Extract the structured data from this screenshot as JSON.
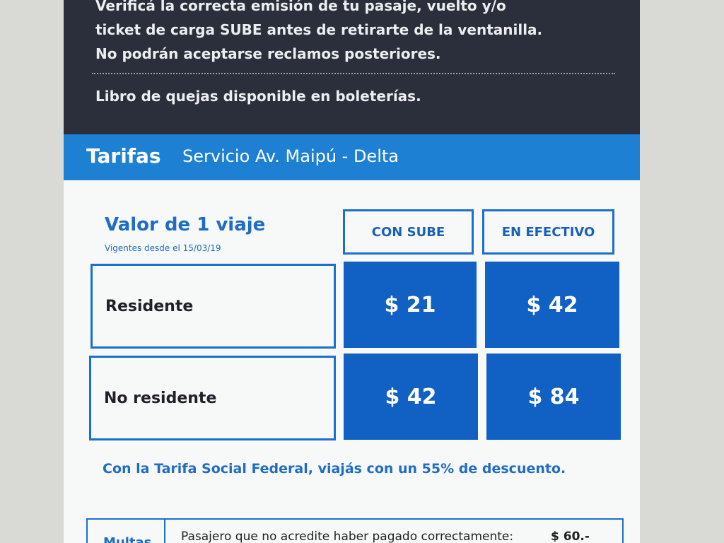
{
  "notice": {
    "lines": [
      "Verificá la correcta emisión de tu pasaje, vuelto y/o",
      "ticket de carga SUBE antes de retirarte de la ventanilla.",
      "No podrán aceptarse reclamos posteriores."
    ],
    "complaints": "Libro de quejas disponible en boleterías."
  },
  "banner": {
    "title": "Tarifas",
    "subtitle": "Servicio Av. Maipú - Delta"
  },
  "table": {
    "title": "Valor de 1 viaje",
    "note": "Vigentes desde el 15/03/19",
    "headers": [
      "CON SUBE",
      "EN EFECTIVO"
    ],
    "rows": [
      [
        "Residente",
        "$ 21",
        "$ 42"
      ],
      [
        "No residente",
        "$ 42",
        "$ 84"
      ]
    ]
  },
  "footnote": "Con la Tarifa Social Federal, viajás con un 55% de descuento.",
  "fines": {
    "label": "Multas",
    "text": "Pasajero que no acredite haber pagado correctamente:",
    "amount": "$ 60.-"
  }
}
